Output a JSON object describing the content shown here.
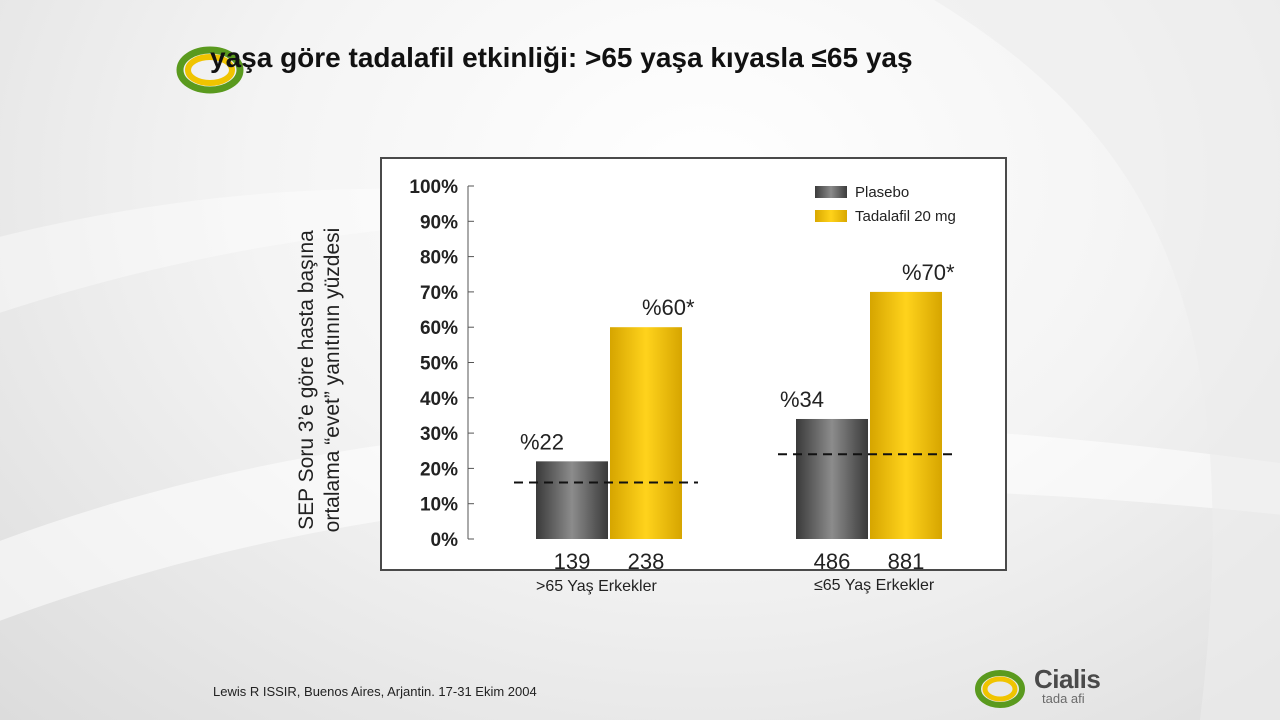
{
  "title": "yaşa göre tadalafil etkinliği: >65 yaşa kıyasla ≤65 yaş",
  "colors": {
    "plasebo": "#6e6e6e",
    "tadalafil": "#f2c200",
    "logo_green": "#5a9a1e",
    "logo_yellow": "#f0c400"
  },
  "chart_data": {
    "type": "bar",
    "ylabel_lines": [
      "SEP Soru 3’e göre hasta başına",
      "ortalama “evet” yanıtının yüzdesi"
    ],
    "ylim": [
      0,
      100
    ],
    "yticks": [
      "0%",
      "10%",
      "20%",
      "30%",
      "40%",
      "50%",
      "60%",
      "70%",
      "80%",
      "90%",
      "100%"
    ],
    "legend_position": "top-right",
    "series": [
      {
        "name": "Plasebo",
        "color": "#6e6e6e"
      },
      {
        "name": "Tadalafil 20 mg",
        "color": "#f2c200"
      }
    ],
    "groups": [
      {
        "label": ">65 Yaş Erkekler",
        "bars": [
          {
            "series": "Plasebo",
            "value": 22,
            "label": "%22",
            "n": "139"
          },
          {
            "series": "Tadalafil 20 mg",
            "value": 60,
            "label": "%60*",
            "n": "238"
          }
        ],
        "baseline": 16
      },
      {
        "label": "≤65 Yaş Erkekler",
        "bars": [
          {
            "series": "Plasebo",
            "value": 34,
            "label": "%34",
            "n": "486"
          },
          {
            "series": "Tadalafil 20 mg",
            "value": 70,
            "label": "%70*",
            "n": "881"
          }
        ],
        "baseline": 24
      }
    ]
  },
  "source": "Lewis R ISSIR, Buenos Aires, Arjantin. 17-31 Ekim 2004",
  "brand": {
    "name": "Cialis",
    "sub": "tada afi"
  }
}
